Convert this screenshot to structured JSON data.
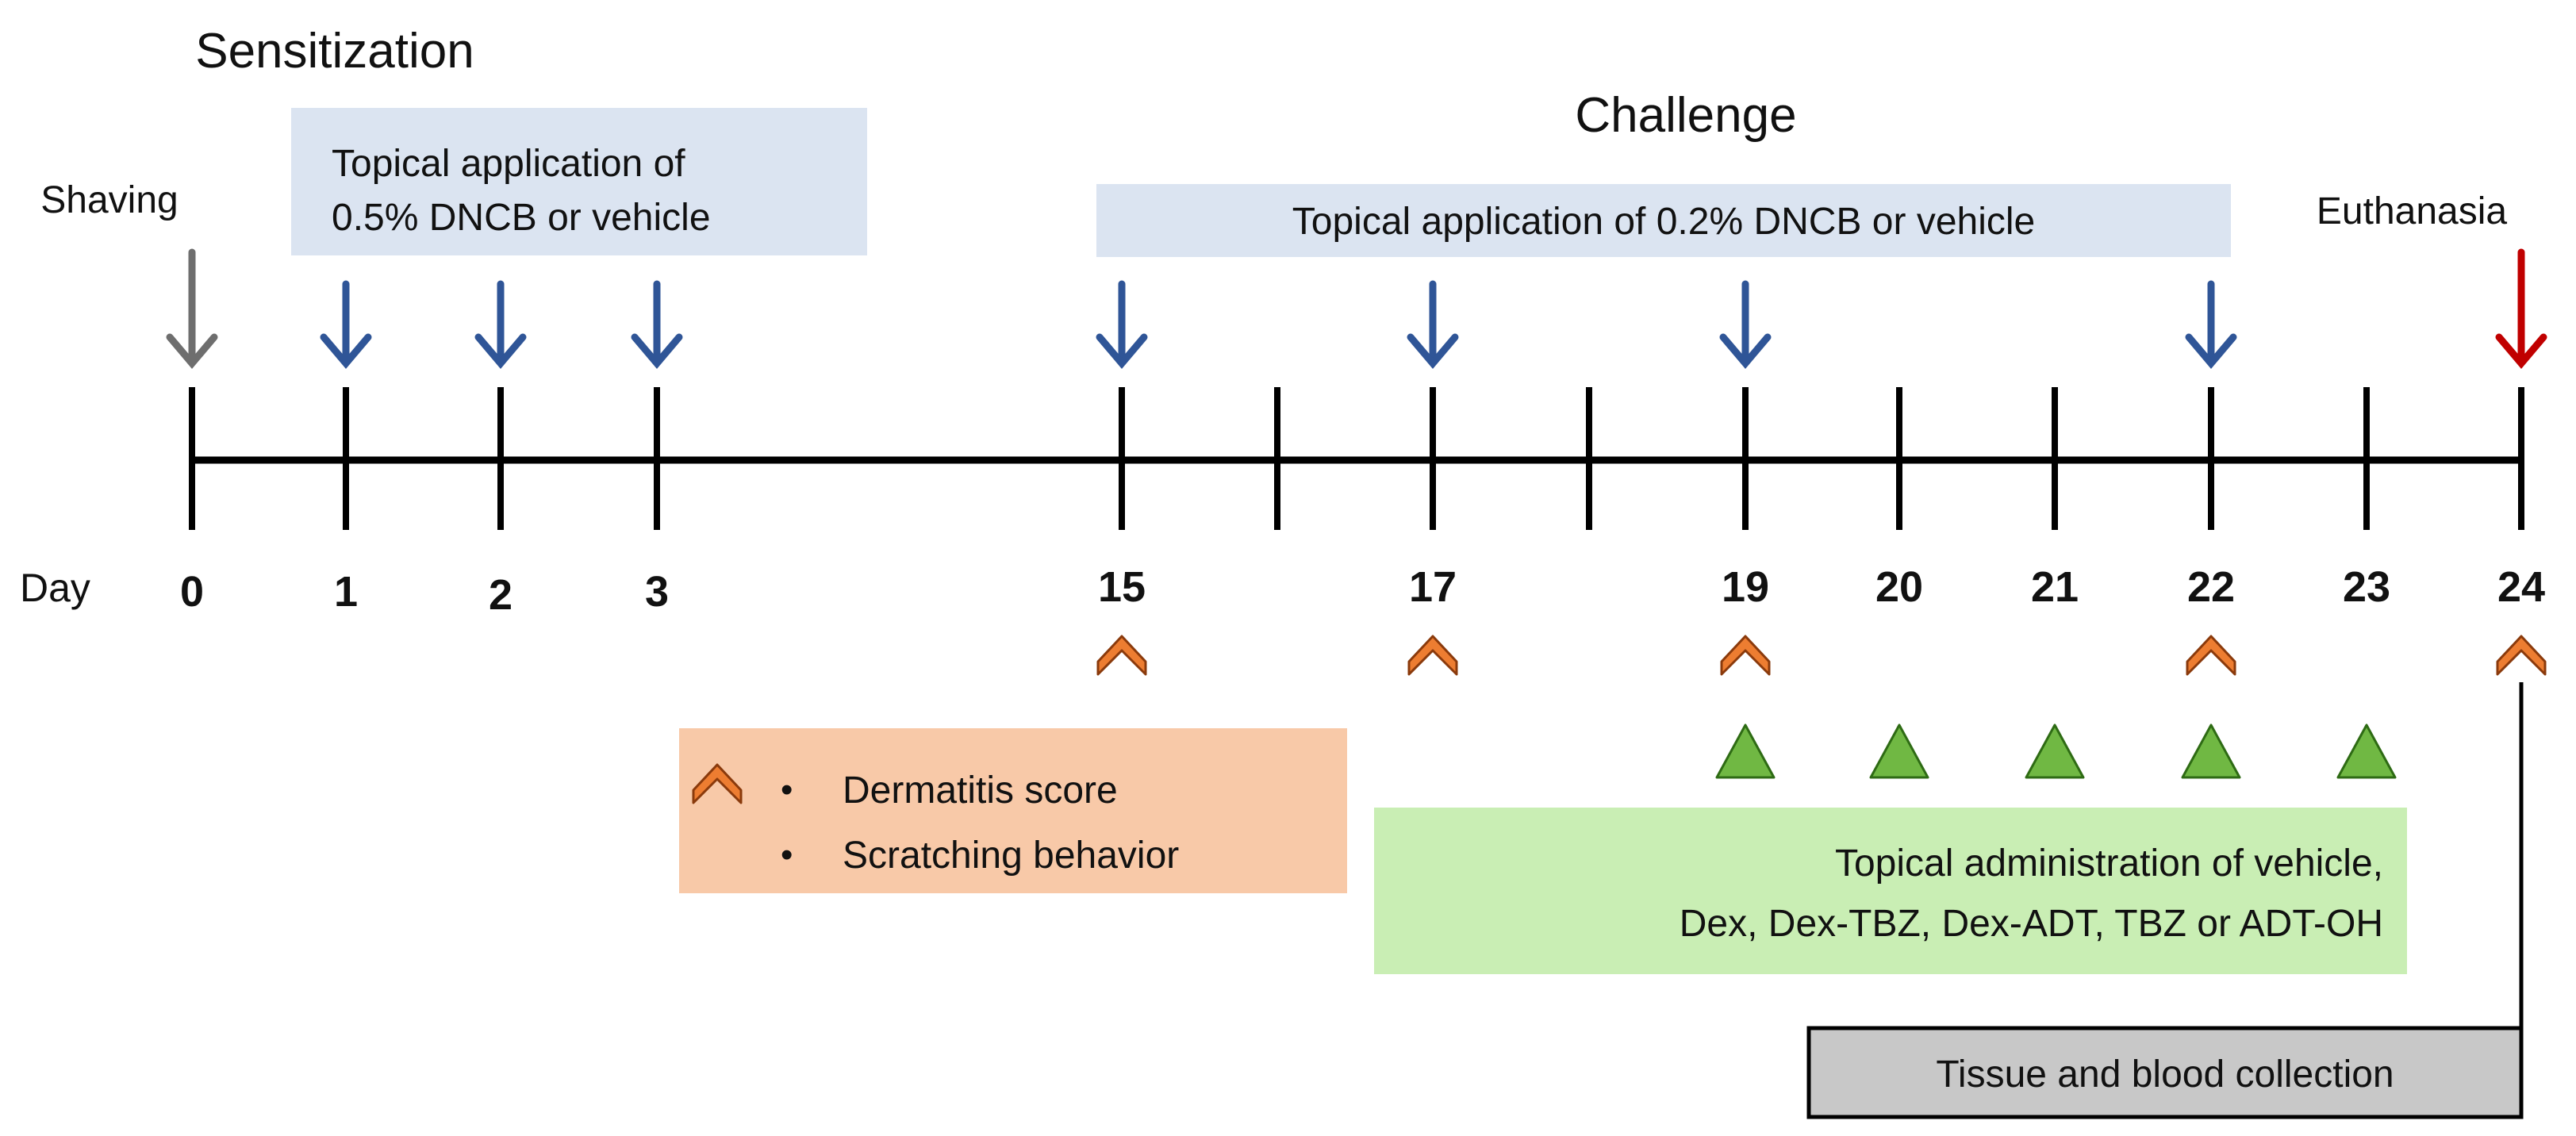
{
  "headings": {
    "sensitization": "Sensitization",
    "challenge": "Challenge"
  },
  "events": {
    "shaving": "Shaving",
    "euthanasia": "Euthanasia"
  },
  "boxes": {
    "sensitization_line1": "Topical application of",
    "sensitization_line2": "0.5% DNCB or vehicle",
    "challenge": "Topical application of 0.2% DNCB or vehicle",
    "legend_item1": "Dermatitis score",
    "legend_item2": "Scratching behavior",
    "legend_bullet": "•",
    "treatment_line1": "Topical administration of vehicle,",
    "treatment_line2": "Dex, Dex-TBZ, Dex-ADT, TBZ or ADT-OH",
    "collection": "Tissue and blood collection"
  },
  "timeline": {
    "axis_label": "Day",
    "ticks": [
      "0",
      "1",
      "2",
      "3",
      "",
      "15",
      "",
      "17",
      "",
      "19",
      "20",
      "21",
      "22",
      "23",
      "24"
    ],
    "sensitization_days": [
      "1",
      "2",
      "3"
    ],
    "challenge_days": [
      "15",
      "17",
      "19",
      "22"
    ],
    "score_days": [
      "15",
      "17",
      "19",
      "22",
      "24"
    ],
    "treatment_days": [
      "19",
      "20",
      "21",
      "22",
      "23"
    ]
  },
  "colors": {
    "sensitization_box": "#dbe4f1",
    "challenge_box": "#dbe4f1",
    "legend_box": "#f8c9a8",
    "treatment_box": "#c9eeb4",
    "collection_box": "#c8c8c8",
    "blue_arrow": "#2f5597",
    "gray_arrow": "#6e6e6e",
    "red_arrow": "#c00000",
    "score_marker": "#ed7d31",
    "treatment_marker": "#70b843"
  }
}
